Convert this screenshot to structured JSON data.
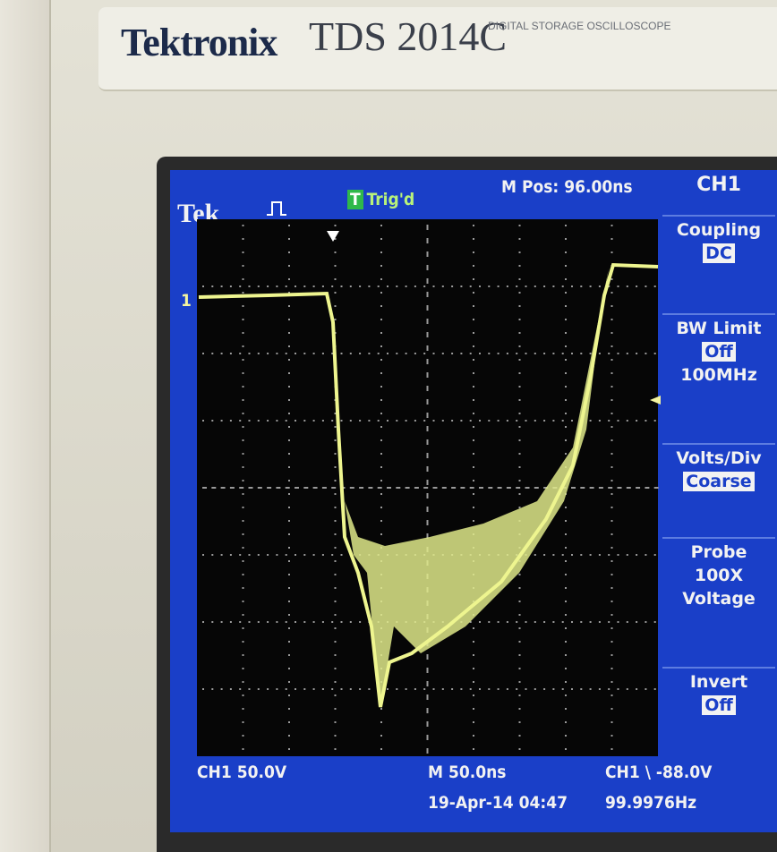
{
  "header": {
    "brand": "Tektronix",
    "model": "TDS 2014C",
    "subtitle": "DIGITAL STORAGE OSCILLOSCOPE"
  },
  "screen": {
    "status": {
      "logo": "Tek",
      "trigger_state": "Trig'd",
      "position": "M Pos: 96.00ns"
    },
    "channel_marker": "1",
    "menu": {
      "title": "CH1",
      "items": [
        {
          "label": "Coupling",
          "value": "DC"
        },
        {
          "label": "BW Limit",
          "value": "Off",
          "detail": "100MHz"
        },
        {
          "label": "Volts/Div",
          "value": "Coarse"
        },
        {
          "label": "Probe",
          "value": "100X",
          "detail": "Voltage"
        },
        {
          "label": "Invert",
          "value": "Off"
        }
      ]
    },
    "footer": {
      "channel_scale": "CH1 50.0V",
      "time_scale": "M 50.0ns",
      "datetime": "19-Apr-14 04:47",
      "trigger": "CH1 \\ -88.0V",
      "frequency": "99.9976Hz"
    }
  }
}
